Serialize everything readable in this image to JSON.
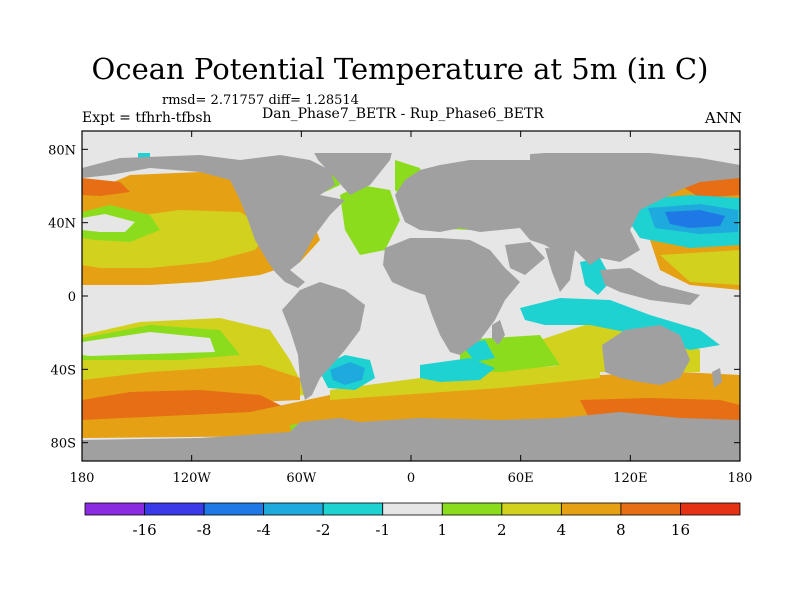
{
  "title": "Ocean Potential Temperature at 5m (in C)",
  "stats": "rmsd= 2.71757 diff= 1.28514",
  "experiment": "Expt = tfhrh-tfbsh",
  "subtitle": "Dan_Phase7_BETR - Rup_Phase6_BETR",
  "season": "ANN",
  "map": {
    "lon_range": [
      -180,
      180
    ],
    "lat_range": [
      -90,
      90
    ],
    "land_color": "#a0a0a0",
    "ocean_base_color": "#e6e6e6",
    "x_ticks": [
      {
        "lon": -180,
        "label": "180"
      },
      {
        "lon": -120,
        "label": "120W"
      },
      {
        "lon": -60,
        "label": "60W"
      },
      {
        "lon": 0,
        "label": "0"
      },
      {
        "lon": 60,
        "label": "60E"
      },
      {
        "lon": 120,
        "label": "120E"
      },
      {
        "lon": 180,
        "label": "180"
      }
    ],
    "y_ticks": [
      {
        "lat": 80,
        "label": "80N"
      },
      {
        "lat": 40,
        "label": "40N"
      },
      {
        "lat": 0,
        "label": "0"
      },
      {
        "lat": -40,
        "label": "40S"
      },
      {
        "lat": -80,
        "label": "80S"
      }
    ]
  },
  "legend": {
    "colors": [
      "#8a2be2",
      "#3a3ae8",
      "#1e78e6",
      "#1eaadc",
      "#1ed2d2",
      "#e6e6e6",
      "#8cdc1e",
      "#d2d21e",
      "#e6a014",
      "#e66e14",
      "#e63214"
    ],
    "labels": [
      "-16",
      "-8",
      "-4",
      "-2",
      "-1",
      "1",
      "2",
      "4",
      "8",
      "16"
    ]
  }
}
